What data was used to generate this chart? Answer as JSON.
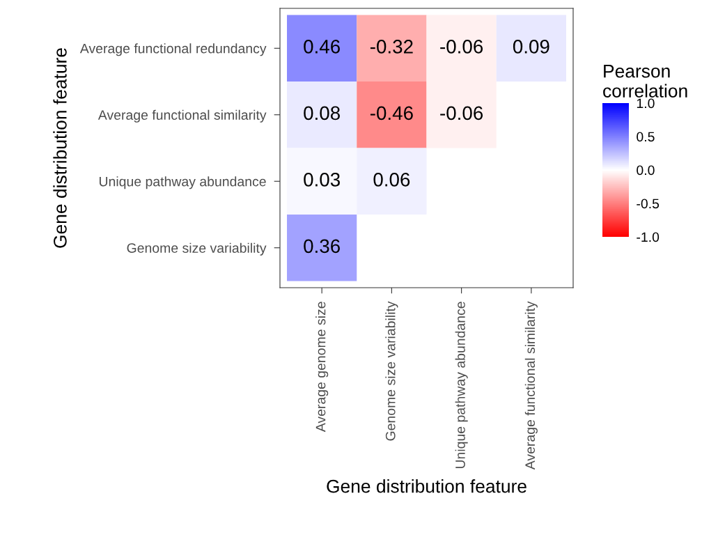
{
  "chart_data": {
    "type": "heatmap",
    "xlabel": "Gene distribution feature",
    "ylabel": "Gene distribution feature",
    "clabel": "Pearson\ncorrelation",
    "categories": [
      "Average genome size",
      "Genome size variability",
      "Unique pathway abundance",
      "Average functional similarity"
    ],
    "y_categories": [
      "Average functional redundancy",
      "Average functional similarity",
      "Unique pathway abundance",
      "Genome size variability"
    ],
    "cells": [
      [
        0.46,
        -0.32,
        -0.06,
        0.09
      ],
      [
        0.08,
        -0.46,
        -0.06,
        null
      ],
      [
        0.03,
        0.06,
        null,
        null
      ],
      [
        0.36,
        null,
        null,
        null
      ]
    ],
    "data_labels": true,
    "colors": [
      "#ff0000",
      "#ffffff",
      "#0000ff"
    ],
    "clim": [
      -1,
      1
    ],
    "cticks": [
      {
        "value": 1.0,
        "label": "1.0"
      },
      {
        "value": 0.5,
        "label": "0.5"
      },
      {
        "value": 0.0,
        "label": "0.0"
      },
      {
        "value": -0.5,
        "label": "-0.5"
      },
      {
        "value": -1.0,
        "label": "-1.0"
      }
    ],
    "grid": false
  }
}
